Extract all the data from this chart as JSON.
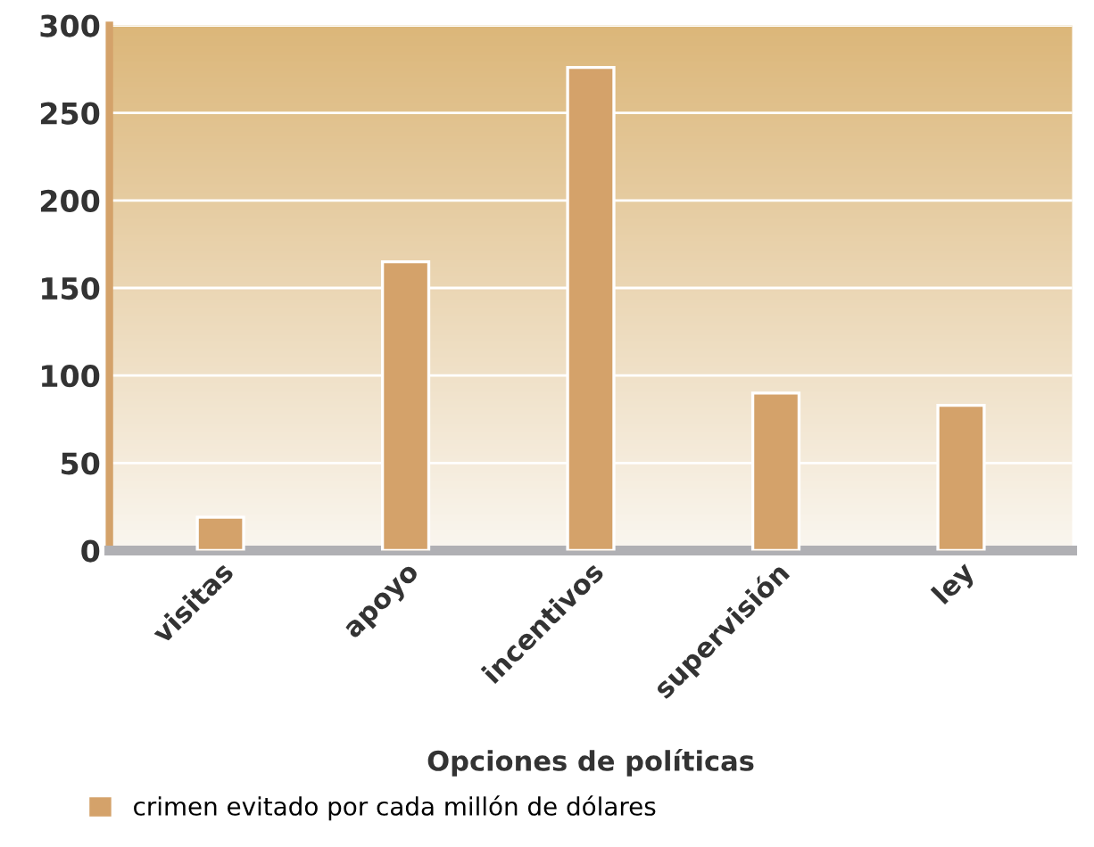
{
  "chart_data": {
    "type": "bar",
    "xlabel": "Opciones de políticas",
    "categories": [
      "visitas",
      "apoyo",
      "incentivos",
      "supervisión",
      "ley"
    ],
    "series": [
      {
        "name": "crimen evitado por cada millón de dólares",
        "color": "#d4a26a",
        "values": [
          19,
          165,
          276,
          90,
          83
        ]
      }
    ],
    "ylim": [
      0,
      300
    ],
    "yticks": [
      0,
      50,
      100,
      150,
      200,
      250,
      300
    ],
    "grid": "y",
    "legend": "bottom left"
  }
}
